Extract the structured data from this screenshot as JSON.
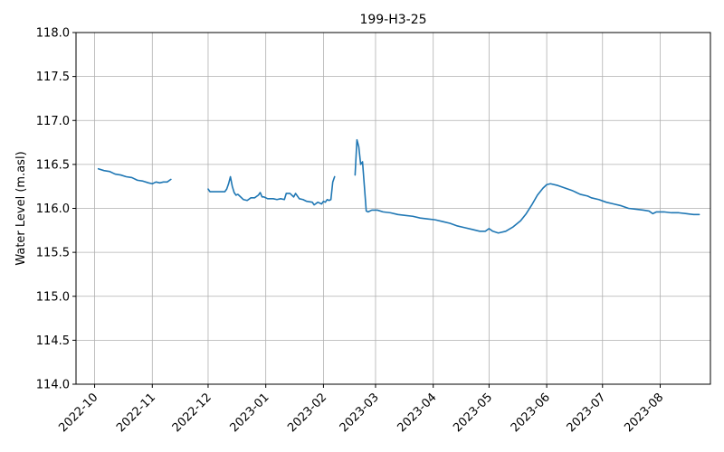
{
  "chart_data": {
    "type": "line",
    "title": "199-H3-25",
    "xlabel": "",
    "ylabel": "Water Level (m.asl)",
    "ylim": [
      114.0,
      118.0
    ],
    "xlim": [
      "2022-09-21",
      "2023-08-28"
    ],
    "grid": true,
    "x_ticks": [
      "2022-10-01",
      "2022-11-01",
      "2022-12-01",
      "2023-01-01",
      "2023-02-01",
      "2023-03-01",
      "2023-04-01",
      "2023-05-01",
      "2023-06-01",
      "2023-07-01",
      "2023-08-01"
    ],
    "x_tick_labels": [
      "2022-10",
      "2022-11",
      "2022-12",
      "2023-01",
      "2023-02",
      "2023-03",
      "2023-04",
      "2023-05",
      "2023-06",
      "2023-07",
      "2023-08"
    ],
    "y_ticks": [
      114.0,
      114.5,
      115.0,
      115.5,
      116.0,
      116.5,
      117.0,
      117.5,
      118.0
    ],
    "y_tick_labels": [
      "114.0",
      "114.5",
      "115.0",
      "115.5",
      "116.0",
      "116.5",
      "117.0",
      "117.5",
      "118.0"
    ],
    "series": [
      {
        "name": "",
        "color": "#1f77b4",
        "segments": [
          [
            [
              "2022-10-03",
              116.45
            ],
            [
              "2022-10-06",
              116.43
            ],
            [
              "2022-10-09",
              116.42
            ],
            [
              "2022-10-12",
              116.39
            ],
            [
              "2022-10-15",
              116.38
            ],
            [
              "2022-10-18",
              116.36
            ],
            [
              "2022-10-21",
              116.35
            ],
            [
              "2022-10-24",
              116.32
            ],
            [
              "2022-10-27",
              116.31
            ],
            [
              "2022-10-30",
              116.29
            ],
            [
              "2022-11-01",
              116.28
            ],
            [
              "2022-11-03",
              116.3
            ],
            [
              "2022-11-05",
              116.29
            ],
            [
              "2022-11-07",
              116.3
            ],
            [
              "2022-11-09",
              116.3
            ],
            [
              "2022-11-11",
              116.33
            ]
          ],
          [
            [
              "2022-12-01",
              116.22
            ],
            [
              "2022-12-02",
              116.19
            ],
            [
              "2022-12-05",
              116.19
            ],
            [
              "2022-12-08",
              116.19
            ],
            [
              "2022-12-10",
              116.19
            ],
            [
              "2022-12-11",
              116.22
            ],
            [
              "2022-12-12",
              116.28
            ],
            [
              "2022-12-13",
              116.36
            ],
            [
              "2022-12-14",
              116.25
            ],
            [
              "2022-12-15",
              116.18
            ],
            [
              "2022-12-16",
              116.15
            ],
            [
              "2022-12-17",
              116.16
            ],
            [
              "2022-12-18",
              116.14
            ],
            [
              "2022-12-20",
              116.1
            ],
            [
              "2022-12-22",
              116.09
            ],
            [
              "2022-12-24",
              116.12
            ],
            [
              "2022-12-26",
              116.12
            ],
            [
              "2022-12-28",
              116.15
            ],
            [
              "2022-12-29",
              116.18
            ],
            [
              "2022-12-30",
              116.13
            ],
            [
              "2022-12-31",
              116.13
            ],
            [
              "2023-01-02",
              116.11
            ],
            [
              "2023-01-05",
              116.11
            ],
            [
              "2023-01-07",
              116.1
            ],
            [
              "2023-01-09",
              116.11
            ],
            [
              "2023-01-11",
              116.1
            ],
            [
              "2023-01-12",
              116.17
            ],
            [
              "2023-01-14",
              116.17
            ],
            [
              "2023-01-16",
              116.13
            ],
            [
              "2023-01-17",
              116.17
            ],
            [
              "2023-01-19",
              116.11
            ],
            [
              "2023-01-21",
              116.1
            ],
            [
              "2023-01-23",
              116.08
            ],
            [
              "2023-01-26",
              116.07
            ],
            [
              "2023-01-27",
              116.04
            ],
            [
              "2023-01-29",
              116.07
            ],
            [
              "2023-01-31",
              116.05
            ],
            [
              "2023-02-01",
              116.08
            ],
            [
              "2023-02-02",
              116.07
            ],
            [
              "2023-02-03",
              116.1
            ],
            [
              "2023-02-04",
              116.09
            ],
            [
              "2023-02-05",
              116.1
            ],
            [
              "2023-02-06",
              116.3
            ],
            [
              "2023-02-07",
              116.36
            ]
          ],
          [
            [
              "2023-02-18",
              116.38
            ],
            [
              "2023-02-19",
              116.78
            ],
            [
              "2023-02-20",
              116.7
            ],
            [
              "2023-02-21",
              116.5
            ],
            [
              "2023-02-22",
              116.53
            ],
            [
              "2023-02-23",
              116.25
            ],
            [
              "2023-02-24",
              115.97
            ],
            [
              "2023-02-25",
              115.96
            ],
            [
              "2023-02-27",
              115.98
            ],
            [
              "2023-03-02",
              115.98
            ],
            [
              "2023-03-05",
              115.96
            ],
            [
              "2023-03-09",
              115.95
            ],
            [
              "2023-03-13",
              115.93
            ],
            [
              "2023-03-17",
              115.92
            ],
            [
              "2023-03-21",
              115.91
            ],
            [
              "2023-03-25",
              115.89
            ],
            [
              "2023-03-29",
              115.88
            ],
            [
              "2023-04-02",
              115.87
            ],
            [
              "2023-04-06",
              115.85
            ],
            [
              "2023-04-10",
              115.83
            ],
            [
              "2023-04-14",
              115.8
            ],
            [
              "2023-04-18",
              115.78
            ],
            [
              "2023-04-22",
              115.76
            ],
            [
              "2023-04-26",
              115.74
            ],
            [
              "2023-04-29",
              115.74
            ],
            [
              "2023-05-01",
              115.77
            ],
            [
              "2023-05-03",
              115.74
            ],
            [
              "2023-05-06",
              115.72
            ],
            [
              "2023-05-10",
              115.74
            ],
            [
              "2023-05-14",
              115.79
            ],
            [
              "2023-05-18",
              115.86
            ],
            [
              "2023-05-21",
              115.94
            ],
            [
              "2023-05-24",
              116.04
            ],
            [
              "2023-05-27",
              116.15
            ],
            [
              "2023-05-30",
              116.23
            ],
            [
              "2023-06-01",
              116.27
            ],
            [
              "2023-06-03",
              116.28
            ],
            [
              "2023-06-07",
              116.26
            ],
            [
              "2023-06-11",
              116.23
            ],
            [
              "2023-06-15",
              116.2
            ],
            [
              "2023-06-19",
              116.16
            ],
            [
              "2023-06-23",
              116.14
            ],
            [
              "2023-06-25",
              116.12
            ],
            [
              "2023-06-29",
              116.1
            ],
            [
              "2023-07-03",
              116.07
            ],
            [
              "2023-07-07",
              116.05
            ],
            [
              "2023-07-11",
              116.03
            ],
            [
              "2023-07-15",
              116.0
            ],
            [
              "2023-07-19",
              115.99
            ],
            [
              "2023-07-23",
              115.98
            ],
            [
              "2023-07-26",
              115.97
            ],
            [
              "2023-07-28",
              115.94
            ],
            [
              "2023-07-30",
              115.96
            ],
            [
              "2023-08-03",
              115.96
            ],
            [
              "2023-08-07",
              115.95
            ],
            [
              "2023-08-11",
              115.95
            ],
            [
              "2023-08-15",
              115.94
            ],
            [
              "2023-08-19",
              115.93
            ],
            [
              "2023-08-22",
              115.93
            ]
          ]
        ]
      }
    ]
  }
}
